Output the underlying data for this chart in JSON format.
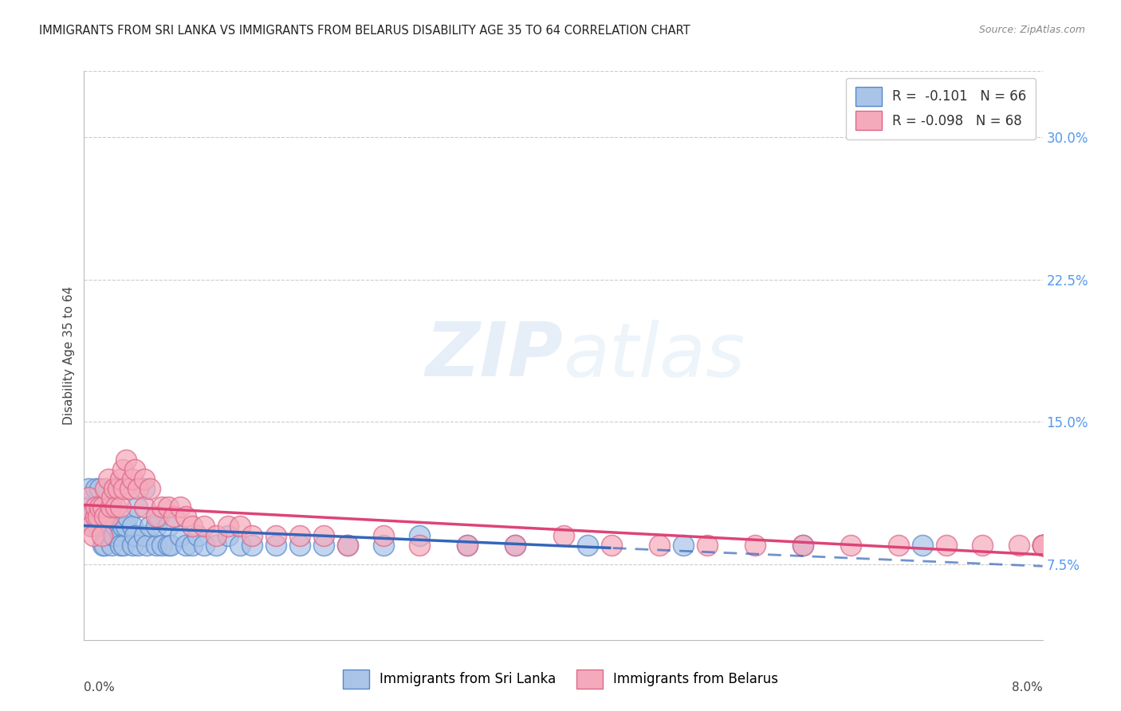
{
  "title": "IMMIGRANTS FROM SRI LANKA VS IMMIGRANTS FROM BELARUS DISABILITY AGE 35 TO 64 CORRELATION CHART",
  "source": "Source: ZipAtlas.com",
  "ylabel": "Disability Age 35 to 64",
  "yticks": [
    "7.5%",
    "15.0%",
    "22.5%",
    "30.0%"
  ],
  "ytick_vals": [
    0.075,
    0.15,
    0.225,
    0.3
  ],
  "xmin": 0.0,
  "xmax": 0.08,
  "ymin": 0.035,
  "ymax": 0.335,
  "series1_color": "#aac4e8",
  "series1_edge": "#5588cc",
  "series2_color": "#f5aabb",
  "series2_edge": "#dd6688",
  "trendline1_color": "#3366bb",
  "trendline2_color": "#dd4477",
  "watermark_color": "#ddeeff",
  "legend_label1": "R =  -0.101   N = 66",
  "legend_label2": "R = -0.098   N = 68",
  "legend_r1": "-0.101",
  "legend_n1": "66",
  "legend_r2": "-0.098",
  "legend_n2": "68",
  "bottom_legend1": "Immigrants from Sri Lanka",
  "bottom_legend2": "Immigrants from Belarus",
  "series1_x": [
    0.0002,
    0.0004,
    0.0006,
    0.0008,
    0.001,
    0.001,
    0.0012,
    0.0013,
    0.0014,
    0.0015,
    0.0016,
    0.0017,
    0.0018,
    0.0018,
    0.002,
    0.002,
    0.0022,
    0.0023,
    0.0024,
    0.0025,
    0.0026,
    0.0027,
    0.003,
    0.003,
    0.003,
    0.0032,
    0.0033,
    0.0035,
    0.0036,
    0.004,
    0.004,
    0.0042,
    0.0044,
    0.0045,
    0.005,
    0.005,
    0.0052,
    0.0055,
    0.006,
    0.006,
    0.0062,
    0.0065,
    0.007,
    0.007,
    0.0072,
    0.008,
    0.0085,
    0.009,
    0.0095,
    0.01,
    0.011,
    0.012,
    0.013,
    0.014,
    0.016,
    0.018,
    0.02,
    0.022,
    0.025,
    0.028,
    0.032,
    0.036,
    0.042,
    0.05,
    0.06,
    0.07
  ],
  "series1_y": [
    0.105,
    0.115,
    0.1,
    0.095,
    0.1,
    0.115,
    0.095,
    0.115,
    0.1,
    0.095,
    0.085,
    0.085,
    0.1,
    0.1,
    0.095,
    0.105,
    0.105,
    0.085,
    0.09,
    0.09,
    0.095,
    0.115,
    0.095,
    0.09,
    0.085,
    0.095,
    0.085,
    0.095,
    0.1,
    0.095,
    0.085,
    0.09,
    0.105,
    0.085,
    0.115,
    0.09,
    0.085,
    0.095,
    0.085,
    0.095,
    0.1,
    0.085,
    0.085,
    0.095,
    0.085,
    0.09,
    0.085,
    0.085,
    0.09,
    0.085,
    0.085,
    0.09,
    0.085,
    0.085,
    0.085,
    0.085,
    0.085,
    0.085,
    0.085,
    0.09,
    0.085,
    0.085,
    0.085,
    0.085,
    0.085,
    0.085
  ],
  "series2_x": [
    0.0002,
    0.0004,
    0.0006,
    0.0008,
    0.001,
    0.001,
    0.0012,
    0.0013,
    0.0015,
    0.0016,
    0.0017,
    0.0018,
    0.002,
    0.002,
    0.0022,
    0.0023,
    0.0025,
    0.0026,
    0.0028,
    0.003,
    0.003,
    0.0032,
    0.0033,
    0.0035,
    0.0038,
    0.004,
    0.0042,
    0.0045,
    0.005,
    0.005,
    0.0055,
    0.006,
    0.0065,
    0.007,
    0.0075,
    0.008,
    0.0085,
    0.009,
    0.01,
    0.011,
    0.012,
    0.013,
    0.014,
    0.016,
    0.018,
    0.02,
    0.022,
    0.025,
    0.028,
    0.032,
    0.036,
    0.04,
    0.044,
    0.048,
    0.052,
    0.056,
    0.06,
    0.064,
    0.068,
    0.072,
    0.075,
    0.078,
    0.08,
    0.08,
    0.08,
    0.08,
    0.08,
    0.08
  ],
  "series2_y": [
    0.1,
    0.11,
    0.095,
    0.09,
    0.1,
    0.105,
    0.1,
    0.105,
    0.09,
    0.105,
    0.1,
    0.115,
    0.1,
    0.12,
    0.105,
    0.11,
    0.115,
    0.105,
    0.115,
    0.105,
    0.12,
    0.125,
    0.115,
    0.13,
    0.115,
    0.12,
    0.125,
    0.115,
    0.12,
    0.105,
    0.115,
    0.1,
    0.105,
    0.105,
    0.1,
    0.105,
    0.1,
    0.095,
    0.095,
    0.09,
    0.095,
    0.095,
    0.09,
    0.09,
    0.09,
    0.09,
    0.085,
    0.09,
    0.085,
    0.085,
    0.085,
    0.09,
    0.085,
    0.085,
    0.085,
    0.085,
    0.085,
    0.085,
    0.085,
    0.085,
    0.085,
    0.085,
    0.085,
    0.085,
    0.085,
    0.085,
    0.085,
    0.085
  ]
}
